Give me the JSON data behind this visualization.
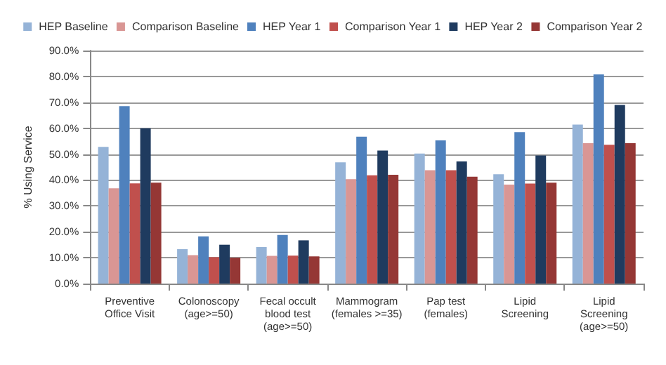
{
  "chart_data": {
    "type": "bar",
    "ylabel": "% Using Service",
    "categories": [
      "Preventive\nOffice Visit",
      "Colonoscopy\n(age>=50)",
      "Fecal occult\nblood test\n(age>=50)",
      "Mammogram\n(females >=35)",
      "Pap test\n(females)",
      "Lipid\nScreening",
      "Lipid\nScreening\n(age>=50)"
    ],
    "series": [
      {
        "name": "HEP Baseline",
        "color": "#95b3d7",
        "values": [
          52.8,
          13.3,
          14.1,
          46.8,
          50.2,
          42.2,
          61.4
        ]
      },
      {
        "name": "Comparison Baseline",
        "color": "#d99694",
        "values": [
          36.8,
          11.0,
          10.7,
          40.3,
          43.8,
          38.2,
          54.2
        ]
      },
      {
        "name": "HEP Year 1",
        "color": "#4f81bd",
        "values": [
          68.5,
          18.2,
          18.8,
          56.7,
          55.3,
          58.5,
          80.8
        ]
      },
      {
        "name": "Comparison Year 1",
        "color": "#c0504d",
        "values": [
          38.7,
          10.2,
          10.8,
          41.8,
          43.8,
          38.6,
          53.6
        ]
      },
      {
        "name": "HEP Year 2",
        "color": "#1f3b5f",
        "values": [
          60.0,
          15.0,
          16.7,
          51.4,
          47.2,
          49.5,
          69.0
        ]
      },
      {
        "name": "Comparison Year 2",
        "color": "#953735",
        "values": [
          39.0,
          10.0,
          10.5,
          42.0,
          41.3,
          39.0,
          54.2
        ]
      }
    ],
    "ylim": [
      0,
      90
    ],
    "yticks": [
      {
        "value": 0,
        "label": "0.0%"
      },
      {
        "value": 10,
        "label": "10.0%"
      },
      {
        "value": 20,
        "label": "20.0%"
      },
      {
        "value": 30,
        "label": "30.0%"
      },
      {
        "value": 40,
        "label": "40.0%"
      },
      {
        "value": 50,
        "label": "50.0%"
      },
      {
        "value": 60,
        "label": "60.0%"
      },
      {
        "value": 70,
        "label": "70.0%"
      },
      {
        "value": 80,
        "label": "80.0%"
      },
      {
        "value": 90,
        "label": "90.0%"
      }
    ],
    "grid": "y",
    "legend": "top"
  }
}
